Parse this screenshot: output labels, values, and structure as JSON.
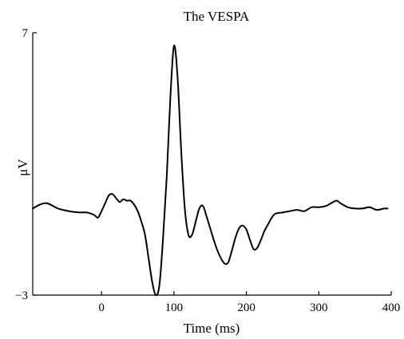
{
  "chart_data": {
    "type": "line",
    "title": "The VESPA",
    "xlabel": "Time (ms)",
    "ylabel": "μV",
    "xlim": [
      -95,
      400
    ],
    "ylim": [
      -3,
      7
    ],
    "x_ticks": [
      0,
      100,
      200,
      300,
      400
    ],
    "y_ticks": [
      7,
      -3
    ],
    "grid": false,
    "series": [
      {
        "x": [
          -95,
          -85,
          -75,
          -60,
          -45,
          -30,
          -20,
          -10,
          -5,
          0,
          5,
          10,
          15,
          20,
          25,
          30,
          35,
          40,
          45,
          50,
          55,
          60,
          65,
          70,
          75,
          80,
          85,
          90,
          95,
          100,
          105,
          110,
          115,
          120,
          125,
          130,
          135,
          140,
          145,
          150,
          155,
          160,
          165,
          170,
          175,
          180,
          185,
          190,
          195,
          200,
          205,
          210,
          215,
          220,
          225,
          230,
          235,
          240,
          250,
          260,
          270,
          280,
          290,
          300,
          310,
          320,
          325,
          330,
          340,
          350,
          360,
          370,
          380,
          390,
          395
        ],
        "y": [
          0.3,
          0.45,
          0.5,
          0.3,
          0.2,
          0.15,
          0.15,
          0.05,
          -0.05,
          0.2,
          0.5,
          0.8,
          0.85,
          0.7,
          0.55,
          0.65,
          0.6,
          0.6,
          0.45,
          0.2,
          -0.2,
          -0.7,
          -1.6,
          -2.5,
          -3.0,
          -2.6,
          -0.8,
          1.5,
          4.5,
          6.5,
          5.3,
          2.5,
          0.3,
          -0.7,
          -0.7,
          -0.2,
          0.3,
          0.4,
          0.0,
          -0.45,
          -0.9,
          -1.3,
          -1.6,
          -1.8,
          -1.75,
          -1.3,
          -0.8,
          -0.45,
          -0.35,
          -0.5,
          -0.9,
          -1.25,
          -1.2,
          -0.9,
          -0.55,
          -0.3,
          -0.05,
          0.1,
          0.15,
          0.2,
          0.25,
          0.2,
          0.35,
          0.35,
          0.4,
          0.55,
          0.6,
          0.5,
          0.35,
          0.3,
          0.3,
          0.35,
          0.25,
          0.3,
          0.3
        ]
      }
    ]
  }
}
